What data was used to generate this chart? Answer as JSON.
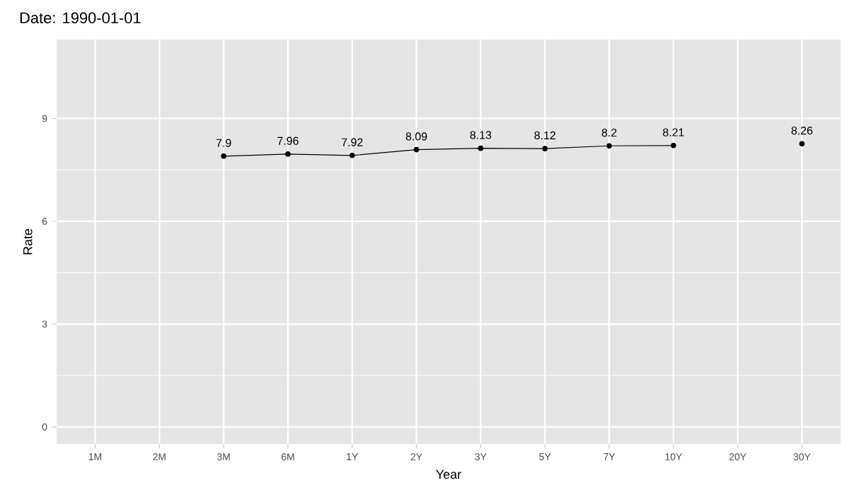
{
  "chart_data": {
    "type": "line",
    "title": "Date: 1990-01-01",
    "xlabel": "Year",
    "ylabel": "Rate",
    "categories": [
      "1M",
      "2M",
      "3M",
      "6M",
      "1Y",
      "2Y",
      "3Y",
      "5Y",
      "7Y",
      "10Y",
      "20Y",
      "30Y"
    ],
    "series": [
      {
        "color": "#000000",
        "values": [
          null,
          null,
          7.9,
          7.96,
          7.92,
          8.09,
          8.13,
          8.12,
          8.2,
          8.21,
          null,
          8.26
        ]
      }
    ],
    "ylim": [
      -0.5,
      11.3
    ],
    "yticks": [
      0,
      3,
      6,
      9
    ],
    "grid": true,
    "marker": "circle",
    "data_labels": true
  }
}
